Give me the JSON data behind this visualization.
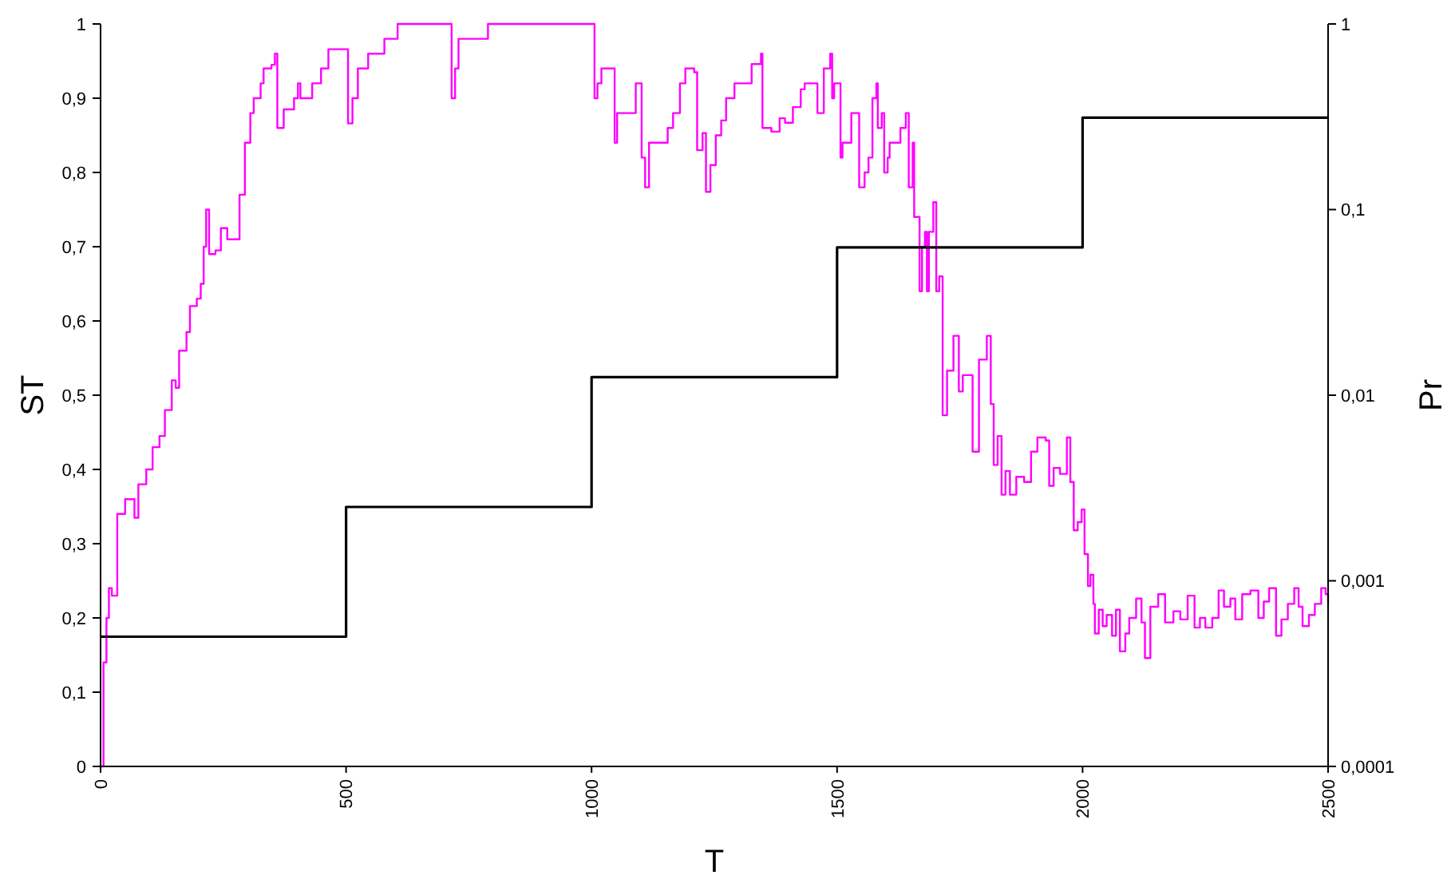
{
  "chart_data": {
    "type": "step",
    "xlabel": "T",
    "ylabel": "ST",
    "y2label": "Pr",
    "xlim": [
      0,
      2500
    ],
    "xticks": [
      0,
      500,
      1000,
      1500,
      2000,
      2500
    ],
    "ylim": [
      0,
      1
    ],
    "yticks": [
      0,
      {
        "value": 0.1,
        "label": "0,1"
      },
      {
        "value": 0.2,
        "label": "0,2"
      },
      {
        "value": 0.3,
        "label": "0,3"
      },
      {
        "value": 0.4,
        "label": "0,4"
      },
      {
        "value": 0.5,
        "label": "0,5"
      },
      {
        "value": 0.6,
        "label": "0,6"
      },
      {
        "value": 0.7,
        "label": "0,7"
      },
      {
        "value": 0.8,
        "label": "0,8"
      },
      {
        "value": 0.9,
        "label": "0,9"
      },
      1
    ],
    "y2lim": [
      0.0001,
      1
    ],
    "y2ticks": [
      {
        "value": 0.0001,
        "label": "0,0001"
      },
      {
        "value": 0.001,
        "label": "0,001"
      },
      {
        "value": 0.01,
        "label": "0,01"
      },
      {
        "value": 0.1,
        "label": "0,1"
      },
      1
    ],
    "log": "y2",
    "grid": false,
    "series": [
      {
        "color": "#ff00ff",
        "x": [
          0,
          6,
          12,
          17,
          23,
          34,
          50,
          69,
          77,
          93,
          106,
          120,
          131,
          145,
          153,
          160,
          175,
          182,
          196,
          204,
          210,
          215,
          221,
          234,
          245,
          258,
          275,
          283,
          294,
          305,
          312,
          326,
          332,
          348,
          355,
          360,
          373,
          394,
          402,
          407,
          431,
          449,
          464,
          502,
          504,
          513,
          524,
          545,
          578,
          605,
          711,
          715,
          722,
          729,
          789,
          1003,
          1006,
          1012,
          1020,
          1045,
          1047,
          1052,
          1085,
          1090,
          1099,
          1102,
          1109,
          1117,
          1152,
          1155,
          1166,
          1180,
          1191,
          1209,
          1215,
          1226,
          1233,
          1242,
          1253,
          1264,
          1274,
          1291,
          1323,
          1326,
          1345,
          1348,
          1366,
          1383,
          1394,
          1410,
          1426,
          1434,
          1456,
          1460,
          1473,
          1486,
          1490,
          1494,
          1504,
          1507,
          1511,
          1524,
          1529,
          1542,
          1545,
          1556,
          1564,
          1572,
          1580,
          1583,
          1591,
          1596,
          1603,
          1607,
          1624,
          1629,
          1637,
          1640,
          1646,
          1654,
          1657,
          1665,
          1668,
          1673,
          1679,
          1683,
          1687,
          1696,
          1702,
          1708,
          1715,
          1724,
          1737,
          1748,
          1756,
          1771,
          1776,
          1789,
          1805,
          1813,
          1819,
          1827,
          1835,
          1843,
          1852,
          1865,
          1881,
          1895,
          1908,
          1925,
          1932,
          1941,
          1954,
          1968,
          1975,
          1982,
          1990,
          1998,
          2004,
          2011,
          2016,
          2022,
          2025,
          2033,
          2041,
          2049,
          2060,
          2068,
          2076,
          2087,
          2095,
          2109,
          2120,
          2127,
          2138,
          2154,
          2168,
          2185,
          2199,
          2214,
          2228,
          2239,
          2250,
          2264,
          2277,
          2288,
          2301,
          2311,
          2325,
          2342,
          2358,
          2369,
          2380,
          2394,
          2405,
          2418,
          2431,
          2440,
          2448,
          2461,
          2473,
          2486,
          2495,
          2500
        ],
        "values": [
          0,
          0.14,
          0.2,
          0.24,
          0.23,
          0.34,
          0.36,
          0.335,
          0.38,
          0.4,
          0.43,
          0.445,
          0.48,
          0.52,
          0.51,
          0.56,
          0.585,
          0.62,
          0.63,
          0.65,
          0.7,
          0.75,
          0.69,
          0.695,
          0.725,
          0.71,
          0.71,
          0.77,
          0.84,
          0.88,
          0.9,
          0.92,
          0.94,
          0.945,
          0.96,
          0.86,
          0.885,
          0.9,
          0.92,
          0.9,
          0.92,
          0.94,
          0.966,
          0.966,
          0.866,
          0.9,
          0.94,
          0.96,
          0.98,
          1,
          1,
          0.9,
          0.94,
          0.98,
          1,
          1,
          0.9,
          0.92,
          0.94,
          0.94,
          0.84,
          0.88,
          0.88,
          0.92,
          0.92,
          0.82,
          0.78,
          0.84,
          0.84,
          0.86,
          0.88,
          0.92,
          0.94,
          0.935,
          0.83,
          0.853,
          0.774,
          0.81,
          0.85,
          0.87,
          0.9,
          0.92,
          0.92,
          0.946,
          0.96,
          0.86,
          0.855,
          0.873,
          0.867,
          0.888,
          0.912,
          0.92,
          0.92,
          0.88,
          0.94,
          0.96,
          0.9,
          0.92,
          0.92,
          0.82,
          0.84,
          0.84,
          0.88,
          0.88,
          0.78,
          0.8,
          0.82,
          0.9,
          0.92,
          0.86,
          0.88,
          0.8,
          0.82,
          0.84,
          0.84,
          0.86,
          0.86,
          0.88,
          0.78,
          0.84,
          0.74,
          0.74,
          0.64,
          0.7,
          0.72,
          0.64,
          0.72,
          0.76,
          0.64,
          0.66,
          0.473,
          0.533,
          0.58,
          0.505,
          0.527,
          0.527,
          0.424,
          0.548,
          0.58,
          0.488,
          0.406,
          0.445,
          0.366,
          0.398,
          0.366,
          0.39,
          0.383,
          0.424,
          0.443,
          0.439,
          0.378,
          0.402,
          0.394,
          0.443,
          0.383,
          0.318,
          0.329,
          0.346,
          0.286,
          0.243,
          0.258,
          0.219,
          0.179,
          0.211,
          0.189,
          0.204,
          0.176,
          0.211,
          0.155,
          0.179,
          0.2,
          0.226,
          0.194,
          0.146,
          0.215,
          0.232,
          0.194,
          0.209,
          0.198,
          0.23,
          0.187,
          0.2,
          0.187,
          0.2,
          0.237,
          0.215,
          0.226,
          0.198,
          0.232,
          0.237,
          0.2,
          0.222,
          0.24,
          0.176,
          0.198,
          0.219,
          0.24,
          0.215,
          0.189,
          0.204,
          0.219,
          0.24,
          0.232,
          0.219
        ]
      },
      {
        "color": "#000000",
        "axis": "y2",
        "x": [
          0,
          500,
          1000,
          1500,
          2000,
          2500
        ],
        "values": [
          0.0005,
          0.0025,
          0.0125,
          0.0625,
          0.3125,
          0.3125
        ]
      }
    ]
  }
}
